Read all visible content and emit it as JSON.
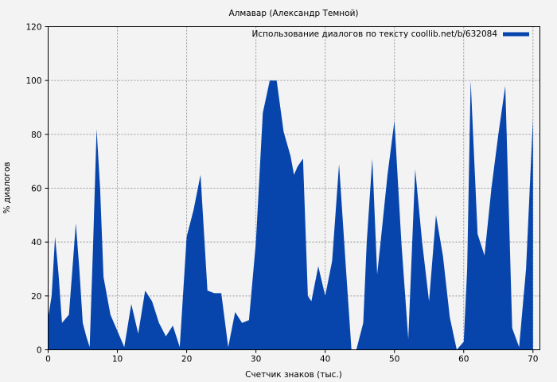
{
  "chart_data": {
    "type": "area",
    "title": "Алмавар (Александр Темной)",
    "xlabel": "Счетчик знаков (тыс.)",
    "ylabel": "% диалогов",
    "xlim": [
      0,
      71
    ],
    "ylim": [
      0,
      120
    ],
    "xticks": [
      0,
      10,
      20,
      30,
      40,
      50,
      60,
      70
    ],
    "yticks": [
      0,
      20,
      40,
      60,
      80,
      100,
      120
    ],
    "grid": true,
    "legend_position": "top-right",
    "colors": {
      "series": "#0745ac",
      "background": "#f3f3f3",
      "grid": "#999999"
    },
    "series": [
      {
        "name": "Использование диалогов по тексту coollib.net/b/632084",
        "x": [
          0,
          0.5,
          1,
          1.5,
          2,
          3,
          3.5,
          4,
          4.5,
          5,
          5.5,
          6,
          6.5,
          7,
          7.5,
          8,
          9,
          10,
          11,
          12,
          13,
          14,
          15,
          16,
          17,
          18,
          19,
          20,
          21,
          22,
          23,
          24,
          25,
          26,
          27,
          28,
          29,
          30,
          31,
          32,
          33,
          34,
          35,
          35.5,
          36,
          36.8,
          37.5,
          38,
          39,
          40,
          41,
          42,
          43,
          43.8,
          44.5,
          45.5,
          46,
          46.8,
          47.5,
          48,
          49,
          50,
          51,
          52,
          53,
          54,
          55,
          56,
          57,
          58,
          59,
          60,
          60.5,
          61,
          62,
          63,
          64,
          65,
          66,
          67,
          68,
          69,
          70
        ],
        "y": [
          12,
          20,
          42,
          28,
          10,
          13,
          30,
          47,
          30,
          10,
          5,
          1,
          40,
          82,
          60,
          27,
          13,
          7,
          1,
          17,
          6,
          22,
          18,
          10,
          5,
          9,
          1,
          42,
          52,
          65,
          22,
          21,
          21,
          1,
          14,
          10,
          11,
          40,
          88,
          100,
          100,
          81,
          72,
          65,
          68,
          71,
          20,
          18,
          31,
          20,
          33,
          69,
          30,
          0,
          0,
          10,
          40,
          71,
          28,
          40,
          65,
          85,
          40,
          4,
          67,
          40,
          18,
          50,
          35,
          12,
          0,
          3,
          30,
          100,
          43,
          35,
          60,
          80,
          98,
          8,
          1,
          30,
          86
        ]
      }
    ]
  }
}
